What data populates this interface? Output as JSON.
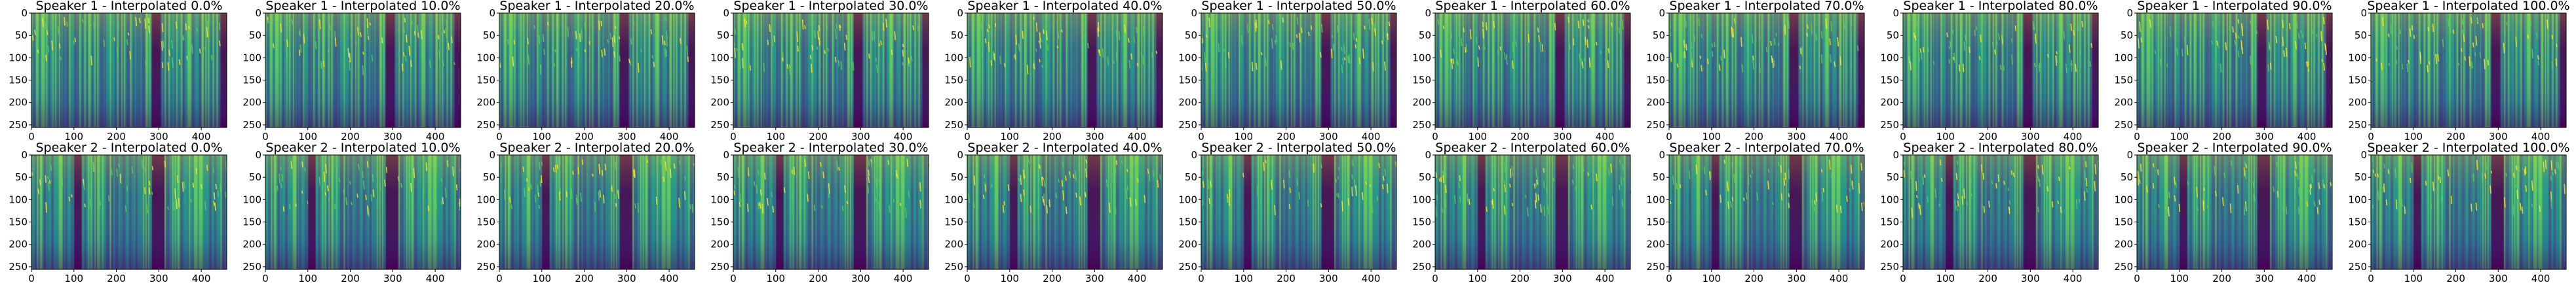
{
  "chart_data": {
    "type": "heatmap",
    "layout": {
      "rows": 2,
      "cols": 11
    },
    "row_labels": [
      "Speaker 1",
      "Speaker 2"
    ],
    "column_labels": [
      "Interpolated 0.0%",
      "Interpolated 10.0%",
      "Interpolated 20.0%",
      "Interpolated 30.0%",
      "Interpolated 40.0%",
      "Interpolated 50.0%",
      "Interpolated 60.0%",
      "Interpolated 70.0%",
      "Interpolated 80.0%",
      "Interpolated 90.0%",
      "Interpolated 100.0%"
    ],
    "panels": [
      {
        "title": "Speaker 1 - Interpolated 0.0%"
      },
      {
        "title": "Speaker 1 - Interpolated 10.0%"
      },
      {
        "title": "Speaker 1 - Interpolated 20.0%"
      },
      {
        "title": "Speaker 1 - Interpolated 30.0%"
      },
      {
        "title": "Speaker 1 - Interpolated 40.0%"
      },
      {
        "title": "Speaker 1 - Interpolated 50.0%"
      },
      {
        "title": "Speaker 1 - Interpolated 60.0%"
      },
      {
        "title": "Speaker 1 - Interpolated 70.0%"
      },
      {
        "title": "Speaker 1 - Interpolated 80.0%"
      },
      {
        "title": "Speaker 1 - Interpolated 90.0%"
      },
      {
        "title": "Speaker 1 - Interpolated 100.0%"
      },
      {
        "title": "Speaker 2 - Interpolated 0.0%"
      },
      {
        "title": "Speaker 2 - Interpolated 10.0%"
      },
      {
        "title": "Speaker 2 - Interpolated 20.0%"
      },
      {
        "title": "Speaker 2 - Interpolated 30.0%"
      },
      {
        "title": "Speaker 2 - Interpolated 40.0%"
      },
      {
        "title": "Speaker 2 - Interpolated 50.0%"
      },
      {
        "title": "Speaker 2 - Interpolated 60.0%"
      },
      {
        "title": "Speaker 2 - Interpolated 70.0%"
      },
      {
        "title": "Speaker 2 - Interpolated 80.0%"
      },
      {
        "title": "Speaker 2 - Interpolated 90.0%"
      },
      {
        "title": "Speaker 2 - Interpolated 100.0%"
      }
    ],
    "x_ticks": [
      0,
      100,
      200,
      300,
      400
    ],
    "y_ticks": [
      0,
      50,
      100,
      150,
      200,
      250
    ],
    "xlim": [
      0,
      460
    ],
    "ylim": [
      256,
      0
    ],
    "colormap": "viridis",
    "colormap_stops": [
      "#440154",
      "#3b528b",
      "#21918c",
      "#5ec962",
      "#fde725"
    ],
    "features": {
      "speaker1_dark_bands": [
        [
          285,
          305
        ],
        [
          445,
          460
        ]
      ],
      "speaker2_dark_bands": [
        [
          100,
          118
        ],
        [
          285,
          312
        ]
      ]
    }
  }
}
